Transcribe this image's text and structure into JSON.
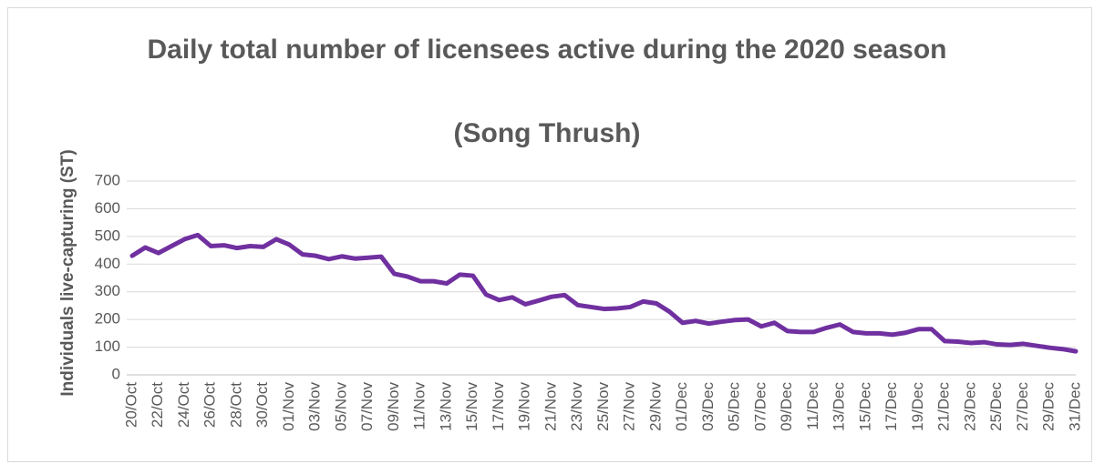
{
  "chart_data": {
    "type": "line",
    "title": "Daily total number of licensees active during the 2020 season",
    "subtitle": "(Song Thrush)",
    "y_label": "Individuals live-capturing (ST)",
    "categories": [
      "20/Oct",
      null,
      "22/Oct",
      null,
      "24/Oct",
      null,
      "26/Oct",
      null,
      "28/Oct",
      null,
      "30/Oct",
      null,
      "01/Nov",
      null,
      "03/Nov",
      null,
      "05/Nov",
      null,
      "07/Nov",
      null,
      "09/Nov",
      null,
      "11/Nov",
      null,
      "13/Nov",
      null,
      "15/Nov",
      null,
      "17/Nov",
      null,
      "19/Nov",
      null,
      "21/Nov",
      null,
      "23/Nov",
      null,
      "25/Nov",
      null,
      "27/Nov",
      null,
      "29/Nov",
      null,
      "01/Dec",
      null,
      "03/Dec",
      null,
      "05/Dec",
      null,
      "07/Dec",
      null,
      "09/Dec",
      null,
      "11/Dec",
      null,
      "13/Dec",
      null,
      "15/Dec",
      null,
      "17/Dec",
      null,
      "19/Dec",
      null,
      "21/Dec",
      null,
      "23/Dec",
      null,
      "25/Dec",
      null,
      "27/Dec",
      null,
      "29/Dec",
      null,
      "31/Dec"
    ],
    "series": [
      {
        "name": "Song Thrush",
        "color": "#7030a0",
        "values": [
          430,
          460,
          440,
          465,
          490,
          505,
          465,
          468,
          458,
          465,
          462,
          490,
          470,
          435,
          430,
          418,
          428,
          420,
          423,
          427,
          365,
          355,
          338,
          338,
          330,
          362,
          358,
          290,
          270,
          280,
          255,
          268,
          282,
          288,
          252,
          245,
          238,
          240,
          245,
          265,
          258,
          228,
          188,
          195,
          185,
          192,
          198,
          200,
          175,
          188,
          158,
          155,
          155,
          170,
          182,
          155,
          150,
          150,
          145,
          152,
          165,
          165,
          122,
          120,
          115,
          118,
          110,
          108,
          112,
          105,
          98,
          93,
          85
        ]
      }
    ],
    "ylim": [
      0,
      700
    ],
    "yticks": [
      0,
      100,
      200,
      300,
      400,
      500,
      600,
      700
    ],
    "grid": true
  }
}
